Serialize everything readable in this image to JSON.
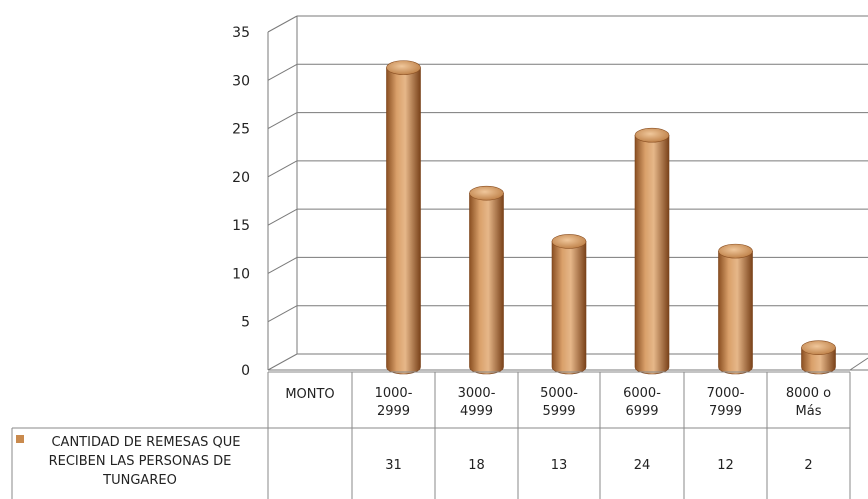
{
  "chart_data": {
    "type": "bar",
    "style": "3d-cylinder",
    "header_label": "MONTO",
    "categories": [
      [
        "1000-",
        "2999"
      ],
      [
        "3000-",
        "4999"
      ],
      [
        "5000-",
        "5999"
      ],
      [
        "6000-",
        "6999"
      ],
      [
        "7000-",
        "7999"
      ],
      [
        "8000 o",
        "Más"
      ]
    ],
    "series": [
      {
        "name_lines": [
          "CANTIDAD DE REMESAS QUE",
          "RECIBEN LAS PERSONAS DE",
          "TUNGAREO"
        ],
        "values": [
          31,
          18,
          13,
          24,
          12,
          2
        ],
        "color": "#c98a4e"
      }
    ],
    "y_ticks": [
      "0",
      "5",
      "10",
      "15",
      "20",
      "25",
      "30",
      "35"
    ],
    "ylim": [
      0,
      35
    ],
    "grid": true,
    "data_table": true
  }
}
